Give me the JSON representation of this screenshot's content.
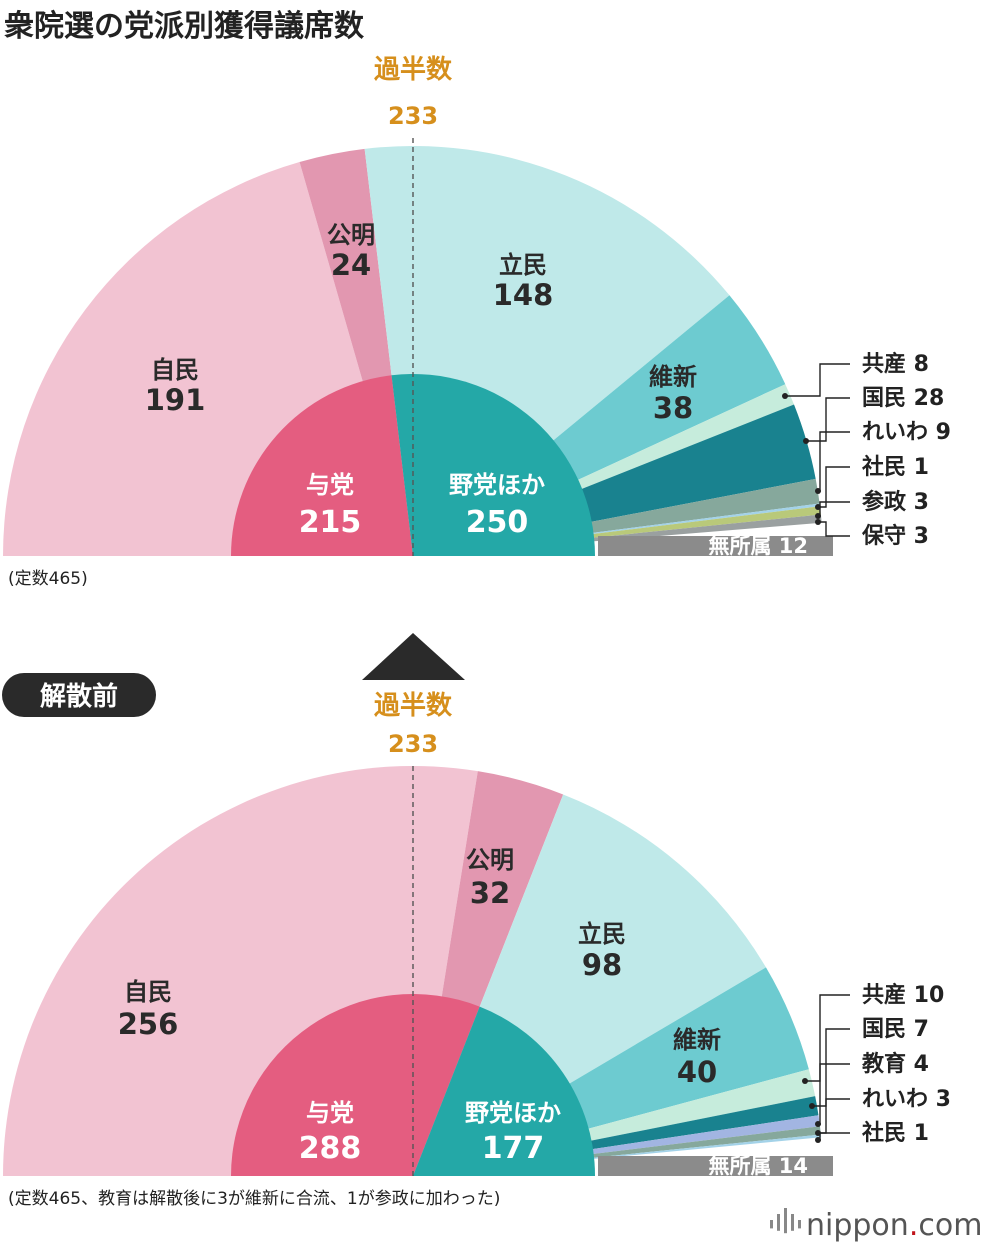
{
  "title": "衆院選の党派別獲得議席数",
  "before_badge": "解散前",
  "brand": {
    "name": "nippon",
    "dot": ".",
    "tld": "com"
  },
  "colors": {
    "自民": "#f2c3d2",
    "公明": "#e297b0",
    "立民": "#bfe9e9",
    "維新": "#6dcbd0",
    "共産": "#c6ecdc",
    "国民": "#19828f",
    "れいわ": "#86a89c",
    "社民": "#a3d2e8",
    "参政": "#b9c97a",
    "保守": "#9aa0a0",
    "教育": "#a2b5e2",
    "無所属": "#8b8b8b",
    "与党": "#e45d80",
    "野党ほか": "#24a8a7",
    "majority": "#d68f1c",
    "arrow": "#2a2a2a"
  },
  "chart_data": [
    {
      "type": "pie",
      "subtype": "half-donut",
      "total_label": "(定数465)",
      "majority": {
        "label": "過半数",
        "value": "233"
      },
      "seats": [
        {
          "name": "自民",
          "value": 191
        },
        {
          "name": "公明",
          "value": 24
        },
        {
          "name": "立民",
          "value": 148
        },
        {
          "name": "維新",
          "value": 38
        },
        {
          "name": "共産",
          "value": 8
        },
        {
          "name": "国民",
          "value": 28
        },
        {
          "name": "れいわ",
          "value": 9
        },
        {
          "name": "社民",
          "value": 1
        },
        {
          "name": "参政",
          "value": 3
        },
        {
          "name": "保守",
          "value": 3
        },
        {
          "name": "無所属",
          "value": 12
        }
      ],
      "blocs": [
        {
          "name": "与党",
          "value": 215
        },
        {
          "name": "野党ほか",
          "value": 250
        }
      ],
      "in_labels": [
        {
          "name": "自民",
          "value": "191"
        },
        {
          "name": "公明",
          "value": "24"
        },
        {
          "name": "立民",
          "value": "148"
        },
        {
          "name": "維新",
          "value": "38"
        }
      ],
      "side_labels": [
        "共産 8",
        "国民 28",
        "れいわ 9",
        "社民 1",
        "参政 3",
        "保守 3"
      ],
      "bar_label": "無所属 12"
    },
    {
      "type": "pie",
      "subtype": "half-donut",
      "total_label": "(定数465、教育は解散後に3が維新に合流、1が参政に加わった)",
      "majority": {
        "label": "過半数",
        "value": "233"
      },
      "seats": [
        {
          "name": "自民",
          "value": 256
        },
        {
          "name": "公明",
          "value": 32
        },
        {
          "name": "立民",
          "value": 98
        },
        {
          "name": "維新",
          "value": 40
        },
        {
          "name": "共産",
          "value": 10
        },
        {
          "name": "国民",
          "value": 7
        },
        {
          "name": "教育",
          "value": 4
        },
        {
          "name": "れいわ",
          "value": 3
        },
        {
          "name": "社民",
          "value": 1
        },
        {
          "name": "無所属",
          "value": 14
        }
      ],
      "blocs": [
        {
          "name": "与党",
          "value": 288
        },
        {
          "name": "野党ほか",
          "value": 177
        }
      ],
      "in_labels": [
        {
          "name": "自民",
          "value": "256"
        },
        {
          "name": "公明",
          "value": "32"
        },
        {
          "name": "立民",
          "value": "98"
        },
        {
          "name": "維新",
          "value": "40"
        }
      ],
      "side_labels": [
        "共産 10",
        "国民 7",
        "教育 4",
        "れいわ 3",
        "社民 1"
      ],
      "bar_label": "無所属 14"
    }
  ]
}
